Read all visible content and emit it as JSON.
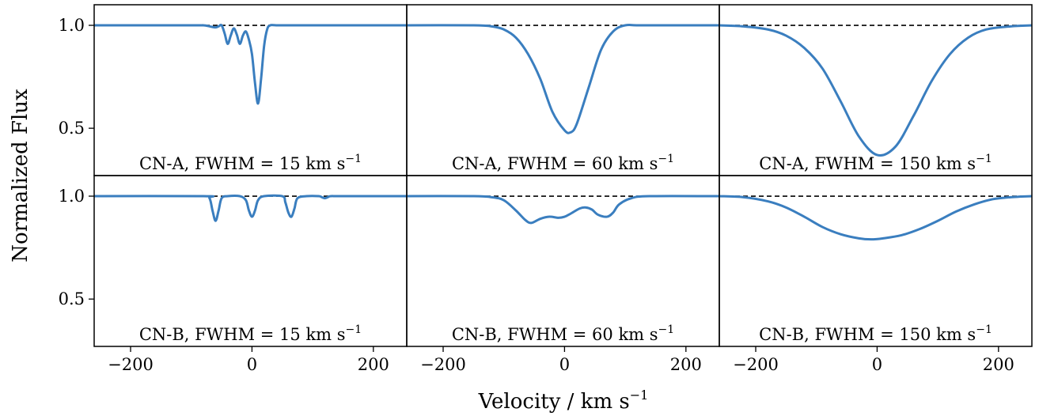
{
  "figure": {
    "xlabel": "Velocity / km s",
    "xlabel_sup": "−1",
    "ylabel": "Normalized Flux",
    "colors": {
      "series": "#3a7ebf",
      "continuum": "#000000"
    }
  },
  "chart_data": {
    "type": "line",
    "grid": false,
    "xlim": [
      -260,
      255
    ],
    "ylim": [
      0.27,
      1.1
    ],
    "xticks": [
      -200,
      0,
      200
    ],
    "xtick_labels": [
      "−200",
      "0",
      "200"
    ],
    "yticks": [
      0.5,
      1.0
    ],
    "ytick_labels": [
      "0.5",
      "1.0"
    ],
    "reference_line": {
      "y": 1.0,
      "style": "dashed"
    },
    "panels": [
      {
        "label": "CN-A, FWHM = 15 km s",
        "label_sup": "−1",
        "x": [
          -260,
          -100,
          -80,
          -70,
          -60,
          -55,
          -50,
          -45,
          -40,
          -35,
          -30,
          -25,
          -20,
          -15,
          -10,
          -5,
          0,
          5,
          10,
          15,
          20,
          25,
          30,
          40,
          60,
          100,
          255
        ],
        "y": [
          1.0,
          1.0,
          1.0,
          0.995,
          0.99,
          0.995,
          1.0,
          0.96,
          0.91,
          0.95,
          0.985,
          0.955,
          0.91,
          0.95,
          0.97,
          0.93,
          0.86,
          0.72,
          0.62,
          0.74,
          0.9,
          0.98,
          1.0,
          1.0,
          1.0,
          1.0,
          1.0
        ]
      },
      {
        "label": "CN-A, FWHM = 60 km s",
        "label_sup": "−1",
        "x": [
          -260,
          -150,
          -120,
          -100,
          -80,
          -60,
          -40,
          -20,
          0,
          10,
          20,
          40,
          60,
          80,
          100,
          130,
          255
        ],
        "y": [
          1.0,
          1.0,
          0.995,
          0.98,
          0.94,
          0.86,
          0.74,
          0.58,
          0.49,
          0.48,
          0.52,
          0.7,
          0.88,
          0.97,
          1.0,
          1.0,
          1.0
        ]
      },
      {
        "label": "CN-A, FWHM = 150 km s",
        "label_sup": "−1",
        "x": [
          -260,
          -220,
          -180,
          -150,
          -120,
          -90,
          -60,
          -30,
          0,
          30,
          60,
          90,
          120,
          150,
          180,
          220,
          255
        ],
        "y": [
          1.0,
          0.995,
          0.98,
          0.95,
          0.89,
          0.79,
          0.63,
          0.46,
          0.37,
          0.41,
          0.56,
          0.73,
          0.86,
          0.94,
          0.98,
          0.995,
          1.0
        ]
      },
      {
        "label": "CN-B, FWHM = 15 km s",
        "label_sup": "−1",
        "x": [
          -260,
          -80,
          -70,
          -65,
          -60,
          -55,
          -50,
          -40,
          -20,
          -10,
          -5,
          0,
          5,
          10,
          20,
          50,
          55,
          60,
          65,
          70,
          75,
          90,
          110,
          115,
          120,
          125,
          130,
          150,
          255
        ],
        "y": [
          1.0,
          1.0,
          0.99,
          0.93,
          0.88,
          0.93,
          0.99,
          1.0,
          1.0,
          0.98,
          0.93,
          0.9,
          0.93,
          0.98,
          1.0,
          1.0,
          0.97,
          0.92,
          0.9,
          0.94,
          0.99,
          1.0,
          1.0,
          0.995,
          0.99,
          0.995,
          1.0,
          1.0,
          1.0
        ]
      },
      {
        "label": "CN-B, FWHM = 60 km s",
        "label_sup": "−1",
        "x": [
          -260,
          -150,
          -120,
          -100,
          -80,
          -65,
          -55,
          -40,
          -25,
          -10,
          0,
          10,
          25,
          35,
          45,
          55,
          70,
          80,
          90,
          110,
          140,
          255
        ],
        "y": [
          1.0,
          1.0,
          0.995,
          0.98,
          0.93,
          0.885,
          0.87,
          0.89,
          0.9,
          0.895,
          0.9,
          0.915,
          0.94,
          0.945,
          0.935,
          0.91,
          0.9,
          0.92,
          0.96,
          0.99,
          1.0,
          1.0
        ]
      },
      {
        "label": "CN-B, FWHM = 150 km s",
        "label_sup": "−1",
        "x": [
          -260,
          -220,
          -180,
          -150,
          -120,
          -90,
          -60,
          -30,
          -10,
          10,
          40,
          70,
          100,
          130,
          160,
          190,
          220,
          255
        ],
        "y": [
          1.0,
          0.995,
          0.975,
          0.945,
          0.9,
          0.85,
          0.815,
          0.795,
          0.79,
          0.795,
          0.81,
          0.84,
          0.88,
          0.925,
          0.96,
          0.985,
          0.995,
          1.0
        ]
      }
    ]
  }
}
